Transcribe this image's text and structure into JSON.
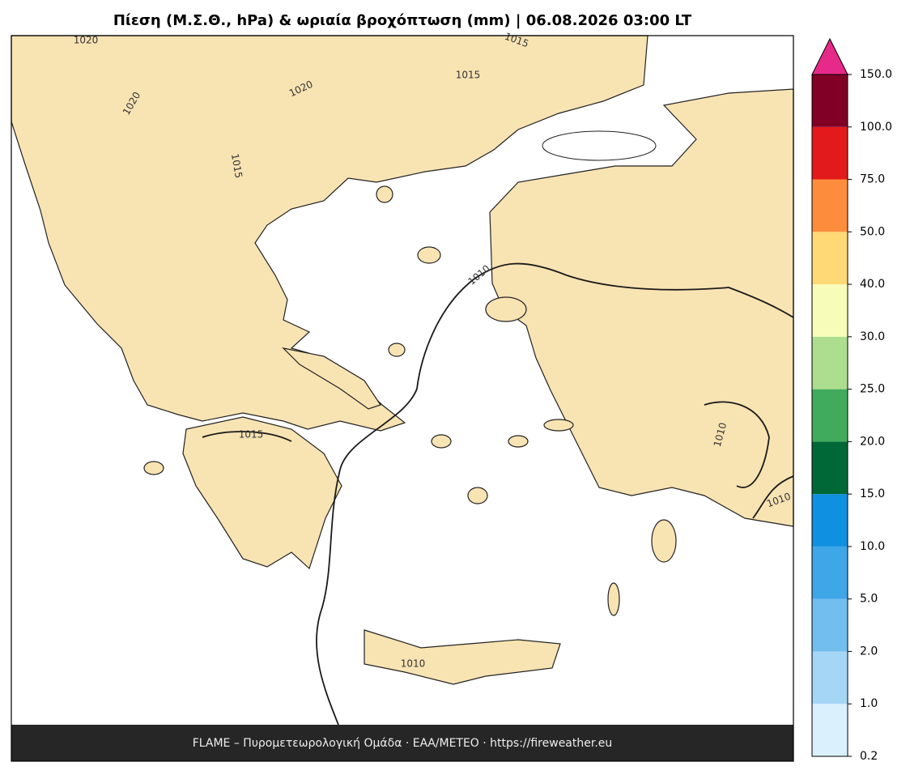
{
  "title": "Πίεση (Μ.Σ.Θ., hPa) & ωριαία βροχόπτωση (mm)  |  06.08.2026 03:00 LT",
  "footer": "FLAME – Πυρομετεωρολογική Ομάδα · ΕΑΑ/METEO · https://fireweather.eu",
  "colorbar": {
    "ticks": [
      "0.2",
      "1.0",
      "2.0",
      "5.0",
      "10.0",
      "15.0",
      "20.0",
      "25.0",
      "30.0",
      "40.0",
      "50.0",
      "75.0",
      "100.0",
      "150.0"
    ],
    "colors": [
      "#dbf0fd",
      "#a6d6f6",
      "#72bfef",
      "#3fa6e8",
      "#1090e0",
      "#006837",
      "#41ab5d",
      "#addd8e",
      "#f7fcb9",
      "#fed976",
      "#fd8d3c",
      "#e31a1c",
      "#800026"
    ],
    "extend_color": "#e7298a"
  },
  "contour_labels": [
    "1020",
    "1015",
    "1015",
    "1020",
    "1020",
    "1015",
    "1010",
    "1015",
    "1010",
    "1010",
    "1010"
  ]
}
